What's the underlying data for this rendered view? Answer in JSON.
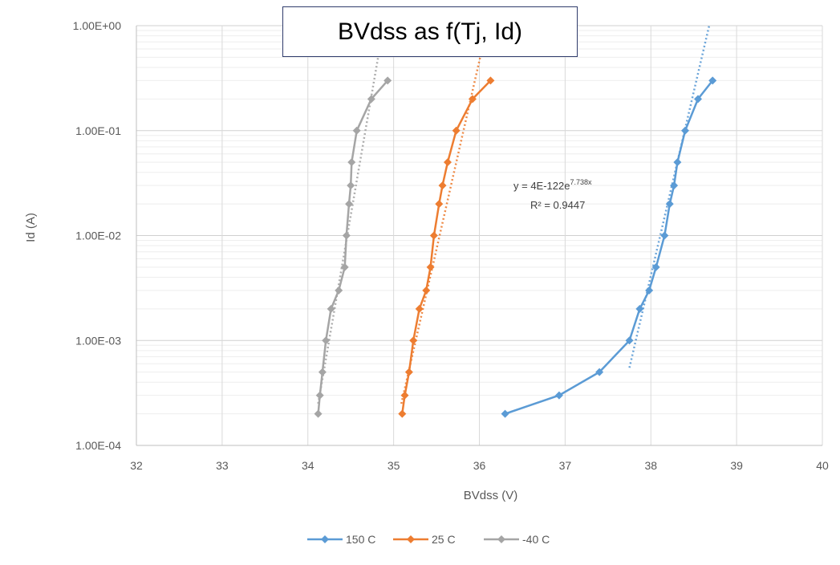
{
  "chart_data": {
    "type": "scatter",
    "title": "BVdss as f(Tj, Id)",
    "xlabel": "BVdss (V)",
    "ylabel": "Id (A)",
    "xlim": [
      32,
      40
    ],
    "ylim": [
      0.0001,
      1
    ],
    "yscale": "log",
    "x_ticks": [
      "32",
      "33",
      "34",
      "35",
      "36",
      "37",
      "38",
      "39",
      "40"
    ],
    "y_ticks": [
      "1.00E-04",
      "1.00E-03",
      "1.00E-02",
      "1.00E-01",
      "1.00E+00"
    ],
    "grid": true,
    "legend_position": "bottom",
    "series": [
      {
        "name": "150 C",
        "color": "#5b9bd5",
        "points": [
          [
            36.3,
            0.0002
          ],
          [
            36.93,
            0.0003
          ],
          [
            37.4,
            0.0005
          ],
          [
            37.75,
            0.001
          ],
          [
            37.87,
            0.002
          ],
          [
            37.98,
            0.003
          ],
          [
            38.06,
            0.005
          ],
          [
            38.16,
            0.01
          ],
          [
            38.22,
            0.02
          ],
          [
            38.27,
            0.03
          ],
          [
            38.31,
            0.05
          ],
          [
            38.4,
            0.1
          ],
          [
            38.55,
            0.2
          ],
          [
            38.72,
            0.3
          ]
        ],
        "trendline": {
          "type": "exponential",
          "from": [
            37.75,
            0.00055
          ],
          "to": [
            38.68,
            1.0
          ],
          "equation": "y = 4E-122e",
          "equation_exponent": "7.738x",
          "r2": "R² = 0.9447"
        }
      },
      {
        "name": "25 C",
        "color": "#ed7d31",
        "points": [
          [
            35.1,
            0.0002
          ],
          [
            35.13,
            0.0003
          ],
          [
            35.18,
            0.0005
          ],
          [
            35.23,
            0.001
          ],
          [
            35.3,
            0.002
          ],
          [
            35.38,
            0.003
          ],
          [
            35.43,
            0.005
          ],
          [
            35.47,
            0.01
          ],
          [
            35.53,
            0.02
          ],
          [
            35.57,
            0.03
          ],
          [
            35.63,
            0.05
          ],
          [
            35.73,
            0.1
          ],
          [
            35.92,
            0.2
          ],
          [
            36.13,
            0.3
          ]
        ],
        "trendline": {
          "type": "exponential",
          "from": [
            35.09,
            0.00025
          ],
          "to": [
            36.05,
            0.7
          ]
        }
      },
      {
        "name": "-40 C",
        "color": "#a5a5a5",
        "points": [
          [
            34.12,
            0.0002
          ],
          [
            34.14,
            0.0003
          ],
          [
            34.17,
            0.0005
          ],
          [
            34.21,
            0.001
          ],
          [
            34.27,
            0.002
          ],
          [
            34.36,
            0.003
          ],
          [
            34.43,
            0.005
          ],
          [
            34.45,
            0.01
          ],
          [
            34.48,
            0.02
          ],
          [
            34.5,
            0.03
          ],
          [
            34.51,
            0.05
          ],
          [
            34.57,
            0.1
          ],
          [
            34.74,
            0.2
          ],
          [
            34.93,
            0.3
          ]
        ],
        "trendline": {
          "type": "exponential",
          "from": [
            34.12,
            0.00025
          ],
          "to": [
            34.85,
            0.7
          ]
        }
      }
    ]
  }
}
